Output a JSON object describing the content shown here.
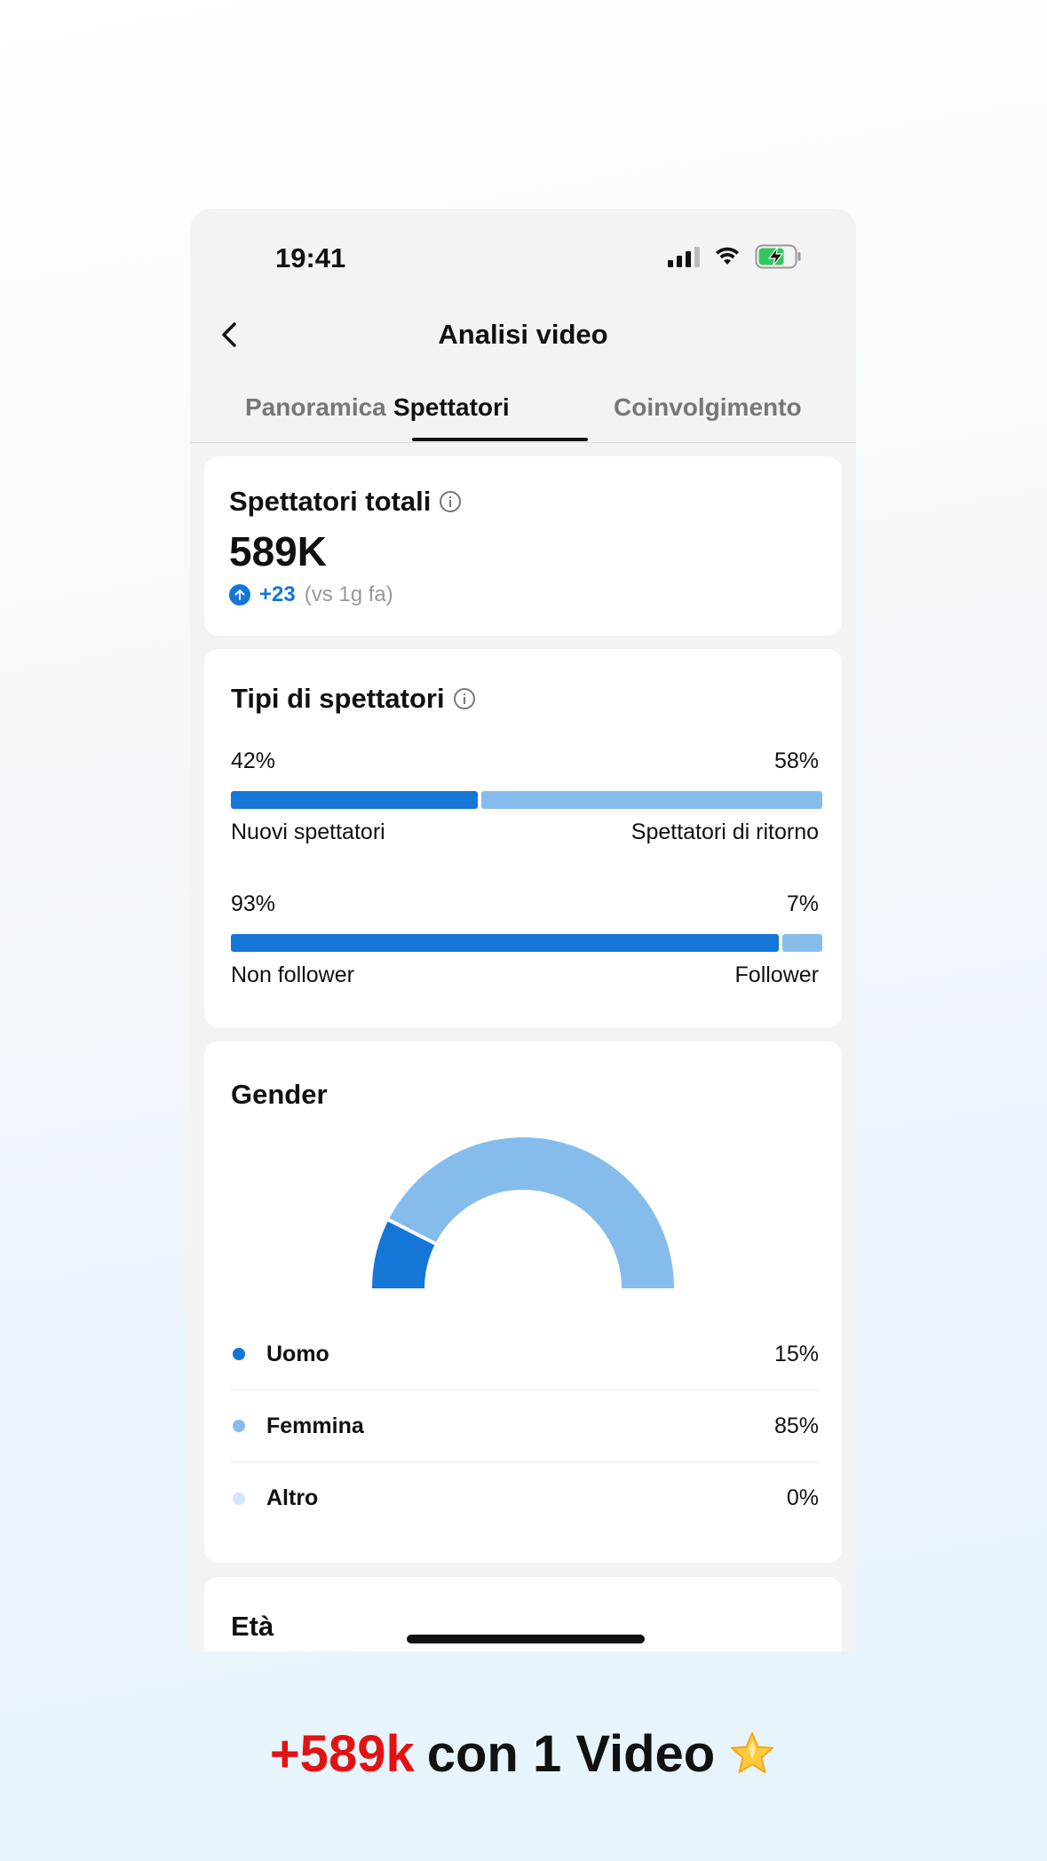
{
  "status_bar": {
    "time": "19:41"
  },
  "header": {
    "title": "Analisi video"
  },
  "tabs": [
    {
      "label": "Panoramica"
    },
    {
      "label": "Spettatori",
      "active": true
    },
    {
      "label": "Coinvolgimento"
    }
  ],
  "total_viewers": {
    "title": "Spettatori totali",
    "value": "589K",
    "delta": "+23",
    "compare": "(vs 1g fa)"
  },
  "viewer_types": {
    "title": "Tipi di spettatori",
    "rows": [
      {
        "left_pct": "42%",
        "right_pct": "58%",
        "left_label": "Nuovi spettatori",
        "right_label": "Spettatori di ritorno",
        "left_value": 42
      },
      {
        "left_pct": "93%",
        "right_pct": "7%",
        "left_label": "Non follower",
        "right_label": "Follower",
        "left_value": 93
      }
    ]
  },
  "gender": {
    "title": "Gender",
    "items": [
      {
        "name": "Uomo",
        "value": "15%",
        "color": "#1476d6"
      },
      {
        "name": "Femmina",
        "value": "85%",
        "color": "#86bcec"
      },
      {
        "name": "Altro",
        "value": "0%",
        "color": "#d3e6f7"
      }
    ]
  },
  "age": {
    "title": "Età"
  },
  "caption": {
    "accent": "+589k",
    "text": "con 1 Video"
  },
  "colors": {
    "primary": "#1476d6",
    "secondary": "#86bcec",
    "accent": "#e31212"
  }
}
